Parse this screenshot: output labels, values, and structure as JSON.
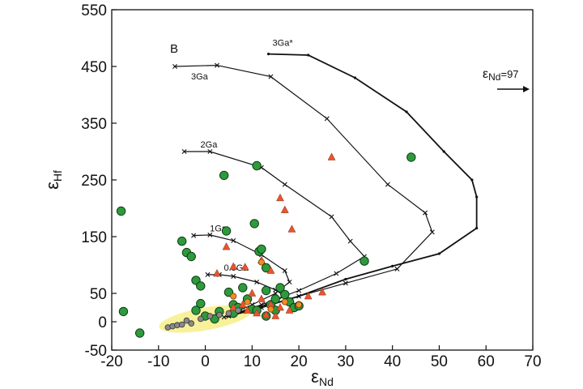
{
  "chart_data": {
    "type": "scatter",
    "panel_label": "B",
    "xlabel": {
      "main": "ε",
      "sub": "Nd"
    },
    "ylabel": {
      "main": "ε",
      "sub": "Hf"
    },
    "xlim": [
      -20,
      70
    ],
    "ylim": [
      -50,
      550
    ],
    "x_ticks": [
      -20,
      -10,
      0,
      10,
      20,
      30,
      40,
      50,
      60,
      70
    ],
    "y_ticks": [
      -50,
      0,
      50,
      150,
      250,
      350,
      450,
      550
    ],
    "annotation": {
      "main": "ε",
      "sub": "Nd",
      "suffix": "=97",
      "arrow": "right"
    },
    "colors": {
      "green": "#2e9a3c",
      "red": "#e8552e",
      "orange": "#f08c2a",
      "gray": "#8a8a8a",
      "yellow": "#f7ef8a",
      "curve": "#111111"
    },
    "highlight_region": {
      "x": [
        -10,
        10
      ],
      "y": [
        -15,
        25
      ]
    },
    "curves": [
      {
        "label": "3Ga*",
        "x_ext": [
          13,
          60
        ],
        "points": [
          [
            13.5,
            472
          ],
          [
            22,
            470
          ],
          [
            32,
            430
          ],
          [
            43,
            370
          ],
          [
            51,
            300
          ],
          [
            57,
            250
          ],
          [
            58,
            220
          ],
          [
            58,
            165
          ],
          [
            50,
            120
          ],
          [
            40,
            98
          ],
          [
            30,
            75
          ],
          [
            20,
            45
          ],
          [
            12,
            25
          ],
          [
            5,
            10
          ]
        ]
      },
      {
        "label": "3Ga",
        "x_ext": [
          -7,
          49
        ],
        "points": [
          [
            -6.5,
            450
          ],
          [
            2.5,
            452
          ],
          [
            14,
            432
          ],
          [
            26,
            358
          ],
          [
            39,
            242
          ],
          [
            47,
            192
          ],
          [
            48.5,
            158
          ],
          [
            41,
            93
          ],
          [
            30,
            68
          ],
          [
            20,
            45
          ],
          [
            12,
            25
          ],
          [
            5,
            10
          ]
        ]
      },
      {
        "label": "2Ga",
        "x_ext": [
          -5,
          35
        ],
        "points": [
          [
            -4.5,
            300
          ],
          [
            1,
            300
          ],
          [
            12,
            272
          ],
          [
            17,
            242
          ],
          [
            27,
            185
          ],
          [
            31,
            142
          ],
          [
            34,
            115
          ],
          [
            28,
            85
          ],
          [
            20,
            55
          ],
          [
            12,
            30
          ],
          [
            5,
            10
          ]
        ]
      },
      {
        "label": "1Ga",
        "x_ext": [
          -3,
          20
        ],
        "points": [
          [
            -2.5,
            152
          ],
          [
            1,
            153
          ],
          [
            6,
            143
          ],
          [
            12,
            118
          ],
          [
            17,
            90
          ],
          [
            18,
            70
          ],
          [
            15,
            50
          ],
          [
            10,
            30
          ],
          [
            5,
            12
          ]
        ]
      },
      {
        "label": "0.5Ga",
        "x_ext": [
          0,
          18
        ],
        "points": [
          [
            0.5,
            83
          ],
          [
            3,
            83
          ],
          [
            6,
            80
          ],
          [
            11,
            70
          ],
          [
            15,
            56
          ],
          [
            17,
            45
          ],
          [
            13,
            30
          ],
          [
            8,
            18
          ],
          [
            4,
            8
          ]
        ]
      }
    ],
    "series": [
      {
        "name": "green circles",
        "marker": "circle",
        "color": "green",
        "points": [
          [
            -18,
            195
          ],
          [
            -17.5,
            18
          ],
          [
            -14,
            -20
          ],
          [
            -5,
            142
          ],
          [
            -4,
            122
          ],
          [
            -3,
            115
          ],
          [
            -2,
            73
          ],
          [
            -1,
            63
          ],
          [
            -1,
            32
          ],
          [
            -2,
            20
          ],
          [
            0,
            10
          ],
          [
            2,
            5
          ],
          [
            4,
            258
          ],
          [
            4.5,
            160
          ],
          [
            5,
            52
          ],
          [
            6,
            30
          ],
          [
            7,
            25
          ],
          [
            8,
            60
          ],
          [
            9,
            40
          ],
          [
            10,
            22
          ],
          [
            10.5,
            173
          ],
          [
            11,
            275
          ],
          [
            11,
            20
          ],
          [
            11.5,
            124
          ],
          [
            12,
            128
          ],
          [
            13,
            95
          ],
          [
            13,
            55
          ],
          [
            14,
            30
          ],
          [
            15,
            20
          ],
          [
            16,
            60
          ],
          [
            17,
            48
          ],
          [
            18,
            35
          ],
          [
            19,
            25
          ],
          [
            20,
            28
          ],
          [
            34,
            107
          ],
          [
            44,
            290
          ],
          [
            6,
            15
          ],
          [
            3,
            18
          ],
          [
            13,
            10
          ],
          [
            15,
            40
          ]
        ]
      },
      {
        "name": "red triangles",
        "marker": "triangle",
        "color": "red",
        "points": [
          [
            27,
            290
          ],
          [
            16,
            218
          ],
          [
            17,
            197
          ],
          [
            18.5,
            163
          ],
          [
            4.5,
            132
          ],
          [
            6,
            97
          ],
          [
            8.5,
            96
          ],
          [
            2.5,
            85
          ],
          [
            12,
            108
          ],
          [
            14,
            90
          ],
          [
            10,
            50
          ],
          [
            12,
            40
          ],
          [
            14,
            30
          ],
          [
            16,
            25
          ],
          [
            18,
            20
          ],
          [
            20,
            30
          ],
          [
            22,
            45
          ],
          [
            25,
            52
          ],
          [
            8,
            30
          ],
          [
            6,
            25
          ],
          [
            9,
            20
          ],
          [
            11,
            15
          ],
          [
            13,
            12
          ],
          [
            15,
            10
          ]
        ]
      },
      {
        "name": "orange circles",
        "marker": "circle",
        "color": "orange",
        "points": [
          [
            12,
            105
          ],
          [
            6,
            45
          ],
          [
            9,
            35
          ],
          [
            14,
            22
          ],
          [
            17,
            35
          ],
          [
            20,
            30
          ]
        ]
      },
      {
        "name": "gray circles",
        "marker": "circle",
        "color": "gray",
        "points": [
          [
            -8,
            -10
          ],
          [
            -7,
            -8
          ],
          [
            -6,
            -6
          ],
          [
            -5,
            -5
          ],
          [
            -4,
            2
          ],
          [
            -3,
            -3
          ],
          [
            -1,
            5
          ],
          [
            1,
            10
          ],
          [
            3,
            12
          ],
          [
            5,
            15
          ],
          [
            7,
            20
          ]
        ]
      }
    ]
  }
}
